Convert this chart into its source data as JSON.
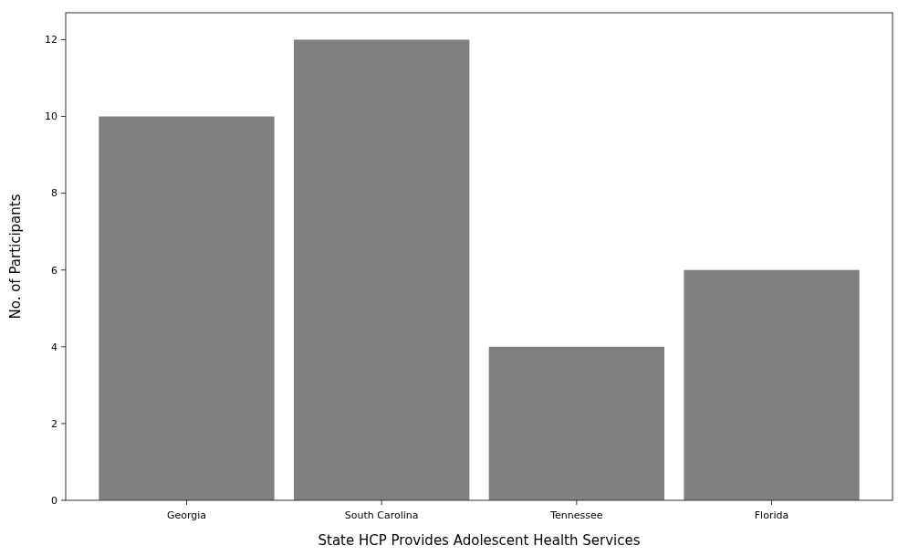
{
  "chart_data": {
    "type": "bar",
    "xlabel": "State HCP Provides Adolescent Health Services",
    "ylabel": "No. of Participants",
    "categories": [
      "Georgia",
      "South Carolina",
      "Tennessee",
      "Florida"
    ],
    "values": [
      10,
      12,
      4,
      6
    ],
    "color": "#808080",
    "ylim": [
      0,
      12.7
    ],
    "yticks": [
      0,
      2,
      4,
      6,
      8,
      10,
      12
    ],
    "grid": false
  }
}
